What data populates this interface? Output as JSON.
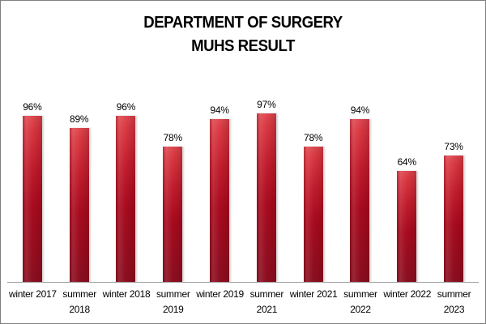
{
  "title": {
    "line1": "DEPARTMENT OF SURGERY",
    "line2": "MUHS RESULT"
  },
  "chart_data": {
    "type": "bar",
    "title": "DEPARTMENT OF SURGERY MUHS RESULT",
    "categories": [
      "winter 2017",
      "summer 2018",
      "winter 2018",
      "summer 2019",
      "winter 2019",
      "summer 2021",
      "winter 2021",
      "summer 2022",
      "winter 2022",
      "summer 2023"
    ],
    "category_lines": [
      [
        "winter 2017"
      ],
      [
        "summer",
        "2018"
      ],
      [
        "winter 2018"
      ],
      [
        "summer",
        "2019"
      ],
      [
        "winter 2019"
      ],
      [
        "summer",
        "2021"
      ],
      [
        "winter 2021"
      ],
      [
        "summer",
        "2022"
      ],
      [
        "winter 2022"
      ],
      [
        "summer",
        "2023"
      ]
    ],
    "values": [
      96,
      89,
      96,
      78,
      94,
      97,
      78,
      94,
      64,
      73
    ],
    "value_labels": [
      "96%",
      "89%",
      "96%",
      "78%",
      "94%",
      "97%",
      "78%",
      "94%",
      "64%",
      "73%"
    ],
    "xlabel": "",
    "ylabel": "",
    "ylim": [
      0,
      100
    ],
    "gridlines": false,
    "legend": "none",
    "y_axis_visible": false,
    "data_labels_position": "above-bar",
    "bar_color_top": "#DC3944",
    "bar_color_mid": "#A80B1F",
    "bar_color_bottom": "#8A0F20",
    "axis_line_color": "#9E9E9E",
    "label_color": "#000000",
    "border_color": "#7F7F7F",
    "background_color": "#FFFFFF"
  }
}
